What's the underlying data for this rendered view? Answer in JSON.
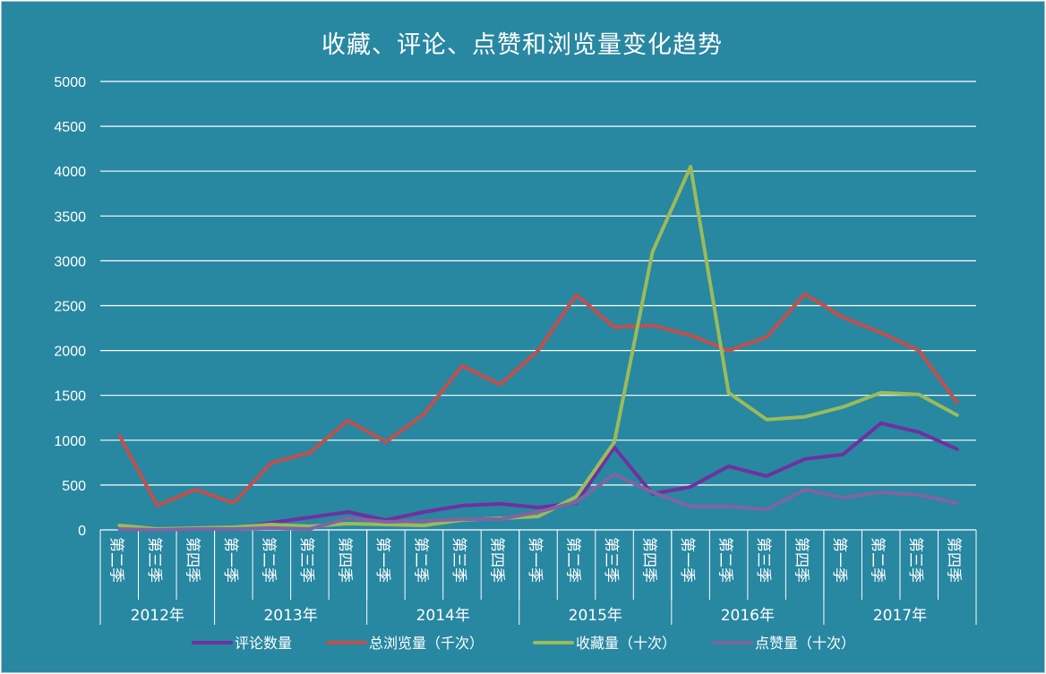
{
  "chart_data": {
    "type": "line",
    "title": "收藏、评论、点赞和浏览量变化趋势",
    "ylim": [
      0,
      5000
    ],
    "yticks": [
      "0",
      "500",
      "1000",
      "1500",
      "2000",
      "2500",
      "3000",
      "3500",
      "4000",
      "4500",
      "5000"
    ],
    "grid": true,
    "legend_position": "bottom",
    "categories": [
      {
        "year": "2012年",
        "quarter": "第二季"
      },
      {
        "year": "2012年",
        "quarter": "第三季"
      },
      {
        "year": "2012年",
        "quarter": "第四季"
      },
      {
        "year": "2013年",
        "quarter": "第一季"
      },
      {
        "year": "2013年",
        "quarter": "第二季"
      },
      {
        "year": "2013年",
        "quarter": "第三季"
      },
      {
        "year": "2013年",
        "quarter": "第四季"
      },
      {
        "year": "2014年",
        "quarter": "第一季"
      },
      {
        "year": "2014年",
        "quarter": "第二季"
      },
      {
        "year": "2014年",
        "quarter": "第三季"
      },
      {
        "year": "2014年",
        "quarter": "第四季"
      },
      {
        "year": "2015年",
        "quarter": "第一季"
      },
      {
        "year": "2015年",
        "quarter": "第二季"
      },
      {
        "year": "2015年",
        "quarter": "第三季"
      },
      {
        "year": "2015年",
        "quarter": "第四季"
      },
      {
        "year": "2016年",
        "quarter": "第一季"
      },
      {
        "year": "2016年",
        "quarter": "第二季"
      },
      {
        "year": "2016年",
        "quarter": "第三季"
      },
      {
        "year": "2016年",
        "quarter": "第四季"
      },
      {
        "year": "2017年",
        "quarter": "第一季"
      },
      {
        "year": "2017年",
        "quarter": "第二季"
      },
      {
        "year": "2017年",
        "quarter": "第三季"
      },
      {
        "year": "2017年",
        "quarter": "第四季"
      }
    ],
    "years": [
      "2012年",
      "2013年",
      "2014年",
      "2015年",
      "2016年",
      "2017年"
    ],
    "series": [
      {
        "name": "评论数量",
        "color": "#7030a0",
        "values": [
          20,
          5,
          10,
          20,
          80,
          140,
          200,
          110,
          200,
          270,
          290,
          250,
          300,
          920,
          400,
          480,
          710,
          600,
          790,
          840,
          1190,
          1090,
          900
        ]
      },
      {
        "name": "总浏览量（千次）",
        "color": "#c0504d",
        "values": [
          1050,
          270,
          450,
          300,
          750,
          860,
          1220,
          980,
          1290,
          1830,
          1620,
          2000,
          2620,
          2260,
          2280,
          2170,
          2000,
          2150,
          2630,
          2370,
          2200,
          2000,
          1420
        ]
      },
      {
        "name": "收藏量（十次）",
        "color": "#9bbb59",
        "values": [
          50,
          10,
          20,
          30,
          60,
          40,
          70,
          60,
          50,
          110,
          130,
          150,
          370,
          980,
          3100,
          4050,
          1530,
          1230,
          1260,
          1370,
          1530,
          1510,
          1280
        ]
      },
      {
        "name": "点赞量（十次）",
        "color": "#8064a2",
        "values": [
          10,
          0,
          10,
          10,
          20,
          10,
          130,
          90,
          100,
          120,
          120,
          200,
          310,
          620,
          420,
          260,
          260,
          230,
          450,
          360,
          420,
          390,
          300
        ]
      }
    ]
  }
}
